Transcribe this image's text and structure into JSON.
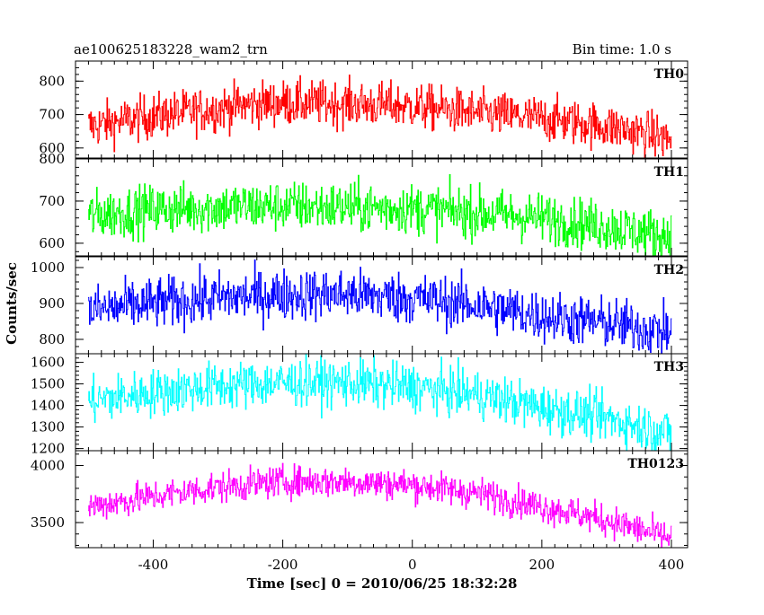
{
  "header": {
    "title": "ae100625183228_wam2_trn",
    "bin_time": "Bin time: 1.0 s"
  },
  "chart_data": {
    "type": "line",
    "title": "ae100625183228_wam2_trn",
    "xlabel": "Time [sec] 0 = 2010/06/25 18:32:28",
    "ylabel": "Counts/sec",
    "xlim": [
      -520,
      425
    ],
    "x_ticks": [
      "-400",
      "-200",
      "0",
      "200",
      "400"
    ],
    "x_tick_values": [
      -400,
      -200,
      0,
      200,
      400
    ],
    "x_range": [
      -500,
      400
    ],
    "grid": false,
    "panels": [
      {
        "name": "TH0",
        "color": "#ff0000",
        "ylim": [
          570,
          860
        ],
        "y_ticks": [
          "600",
          "700",
          "800"
        ],
        "y_tick_values": [
          600,
          700,
          800
        ],
        "trend_x": [
          -500,
          -400,
          -300,
          -250,
          -200,
          -100,
          0,
          100,
          200,
          300,
          350,
          400
        ],
        "trend_y": [
          665,
          695,
          718,
          730,
          735,
          732,
          725,
          705,
          688,
          665,
          648,
          625
        ],
        "noise": 34
      },
      {
        "name": "TH1",
        "color": "#00ff00",
        "ylim": [
          570,
          800
        ],
        "y_ticks": [
          "600",
          "700",
          "800"
        ],
        "y_tick_values": [
          600,
          700,
          800
        ],
        "trend_x": [
          -500,
          -400,
          -300,
          -200,
          -100,
          0,
          100,
          200,
          300,
          400
        ],
        "trend_y": [
          665,
          680,
          685,
          688,
          685,
          682,
          672,
          660,
          640,
          615
        ],
        "noise": 30
      },
      {
        "name": "TH2",
        "color": "#0000ff",
        "ylim": [
          760,
          1030
        ],
        "y_ticks": [
          "800",
          "900",
          "1000"
        ],
        "y_tick_values": [
          800,
          900,
          1000
        ],
        "trend_x": [
          -500,
          -400,
          -300,
          -200,
          -100,
          0,
          100,
          200,
          300,
          400
        ],
        "trend_y": [
          880,
          900,
          915,
          925,
          925,
          915,
          895,
          865,
          845,
          820
        ],
        "noise": 36
      },
      {
        "name": "TH3",
        "color": "#00ffff",
        "ylim": [
          1190,
          1640
        ],
        "y_ticks": [
          "1200",
          "1300",
          "1400",
          "1500",
          "1600"
        ],
        "y_tick_values": [
          1200,
          1300,
          1400,
          1500,
          1600
        ],
        "trend_x": [
          -500,
          -400,
          -300,
          -200,
          -100,
          0,
          100,
          200,
          300,
          400
        ],
        "trend_y": [
          1420,
          1460,
          1490,
          1505,
          1505,
          1485,
          1450,
          1390,
          1340,
          1270
        ],
        "noise": 55
      },
      {
        "name": "TH0123",
        "color": "#ff00ff",
        "ylim": [
          3280,
          4130
        ],
        "y_ticks": [
          "3500",
          "4000"
        ],
        "y_tick_values": [
          3500,
          4000
        ],
        "trend_x": [
          -500,
          -400,
          -300,
          -200,
          -100,
          0,
          100,
          200,
          300,
          400
        ],
        "trend_y": [
          3640,
          3730,
          3810,
          3860,
          3860,
          3830,
          3760,
          3640,
          3520,
          3360
        ],
        "noise": 70
      }
    ]
  }
}
